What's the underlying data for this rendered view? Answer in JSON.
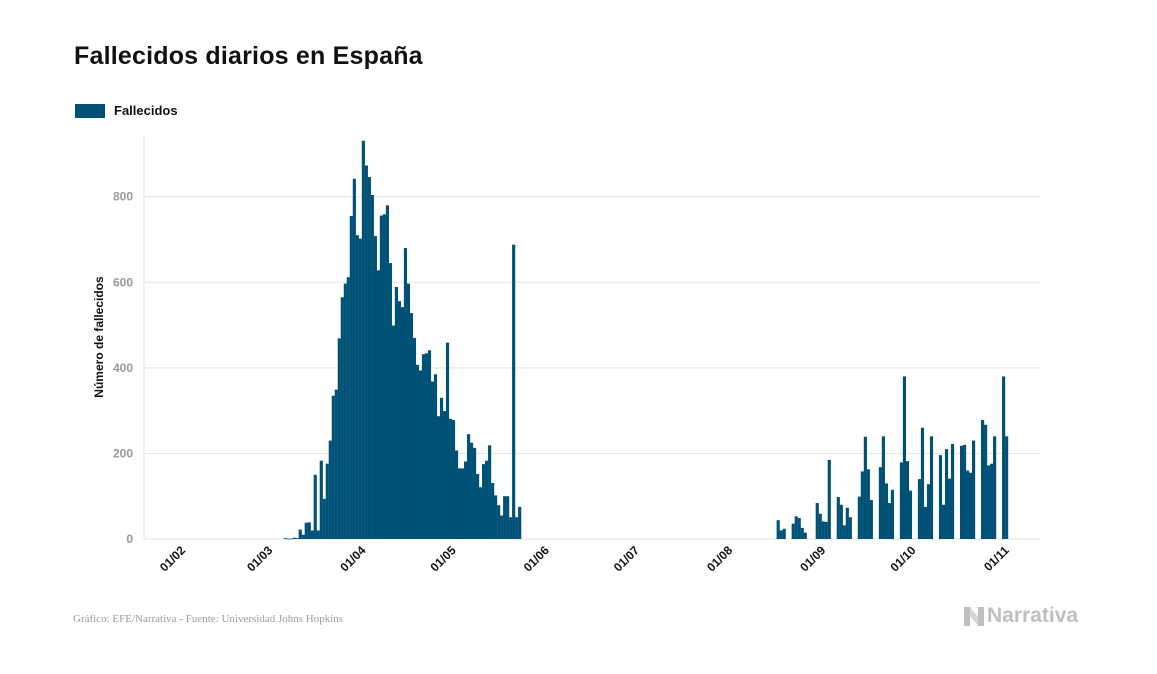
{
  "header": {
    "title": "Fallecidos diarios en España"
  },
  "colors": {
    "bar": "#005176",
    "grid": "#e4e4e4",
    "tick": "#999999",
    "text": "#111111",
    "brand": "#bfbfbf"
  },
  "footer": {
    "source": "Gráfico: EFE/Narrativa - Fuente: Universidad Johns Hopkins",
    "brand": "Narrativa",
    "brand_icon": "narrativa-n-logo-icon"
  },
  "chart_data": {
    "type": "bar",
    "title": "Fallecidos diarios en España",
    "ylabel": "Número de fallecidos",
    "xlabel": "",
    "ylim": [
      0,
      970
    ],
    "yticks": [
      0,
      200,
      400,
      600,
      800
    ],
    "grid": true,
    "legend_position": "top-left",
    "x_ticks": [
      "01/02",
      "01/03",
      "01/04",
      "01/05",
      "01/06",
      "01/07",
      "01/08",
      "01/09",
      "01/10",
      "01/11"
    ],
    "x_start": "01/02",
    "series": [
      {
        "name": "Fallecidos",
        "values": [
          0,
          0,
          0,
          0,
          0,
          0,
          0,
          0,
          0,
          0,
          0,
          0,
          0,
          0,
          0,
          0,
          0,
          0,
          0,
          0,
          0,
          0,
          0,
          0,
          0,
          0,
          0,
          0,
          0,
          0,
          0,
          0,
          0,
          0,
          2,
          1,
          1,
          3,
          2,
          22,
          10,
          38,
          39,
          20,
          150,
          20,
          183,
          94,
          176,
          230,
          335,
          349,
          469,
          565,
          597,
          612,
          755,
          842,
          710,
          702,
          931,
          873,
          846,
          804,
          708,
          628,
          756,
          759,
          780,
          645,
          499,
          589,
          556,
          542,
          680,
          597,
          528,
          470,
          407,
          394,
          432,
          434,
          441,
          368,
          385,
          287,
          330,
          299,
          459,
          281,
          278,
          207,
          165,
          165,
          181,
          245,
          225,
          213,
          152,
          121,
          175,
          183,
          219,
          131,
          102,
          79,
          55,
          100,
          100,
          51,
          688,
          51,
          75,
          0,
          0,
          0,
          0,
          0,
          0,
          0,
          0,
          0,
          0,
          0,
          0,
          0,
          0,
          0,
          0,
          0,
          0,
          0,
          0,
          0,
          0,
          0,
          0,
          0,
          0,
          0,
          0,
          0,
          0,
          0,
          0,
          0,
          0,
          0,
          0,
          0,
          0,
          0,
          0,
          0,
          0,
          0,
          0,
          0,
          0,
          0,
          0,
          0,
          0,
          0,
          0,
          0,
          0,
          0,
          0,
          0,
          0,
          0,
          0,
          0,
          0,
          0,
          0,
          0,
          0,
          0,
          0,
          0,
          0,
          0,
          0,
          0,
          0,
          0,
          0,
          0,
          0,
          0,
          0,
          0,
          0,
          0,
          0,
          0,
          44,
          20,
          24,
          0,
          0,
          36,
          53,
          49,
          26,
          15,
          0,
          0,
          0,
          84,
          59,
          41,
          40,
          185,
          0,
          0,
          98,
          80,
          32,
          73,
          51,
          0,
          0,
          99,
          158,
          239,
          163,
          91,
          0,
          0,
          168,
          240,
          130,
          84,
          115,
          0,
          0,
          179,
          380,
          182,
          113,
          0,
          0,
          140,
          260,
          75,
          128,
          240,
          0,
          0,
          196,
          80,
          210,
          141,
          222,
          0,
          0,
          218,
          220,
          160,
          155,
          230,
          0,
          0,
          278,
          267,
          172,
          176,
          240,
          0,
          0,
          380,
          240
        ]
      }
    ]
  }
}
